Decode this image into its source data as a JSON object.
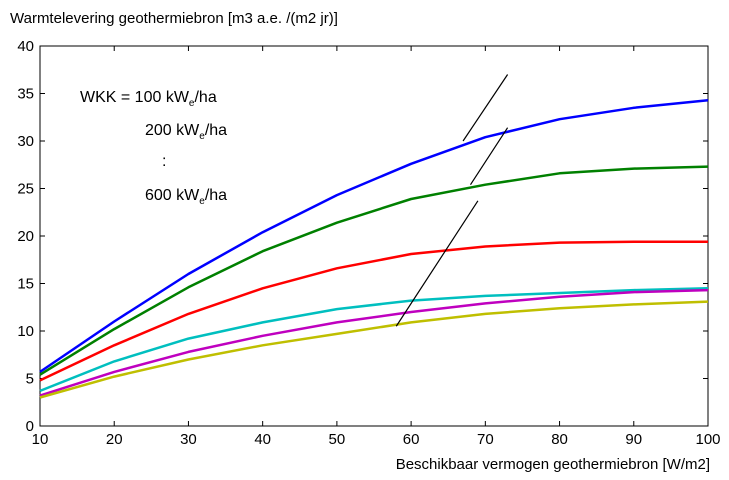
{
  "chart_data": {
    "type": "line",
    "title": "",
    "ylabel": "Warmtelevering geothermiebron [m3 a.e. /(m2 jr)]",
    "xlabel": "Beschikbaar vermogen geothermiebron [W/m2]",
    "xlim": [
      10,
      100
    ],
    "ylim": [
      0,
      40
    ],
    "x_ticks": [
      10,
      20,
      30,
      40,
      50,
      60,
      70,
      80,
      90,
      100
    ],
    "y_ticks": [
      0,
      5,
      10,
      15,
      20,
      25,
      30,
      35,
      40
    ],
    "grid": false,
    "x": [
      10,
      20,
      30,
      40,
      50,
      60,
      70,
      80,
      90,
      100
    ],
    "series": [
      {
        "color": "#0000ff",
        "values": [
          5.7,
          11.0,
          16.0,
          20.4,
          24.3,
          27.6,
          30.4,
          32.3,
          33.5,
          34.3
        ]
      },
      {
        "color": "#008000",
        "values": [
          5.4,
          10.2,
          14.6,
          18.4,
          21.4,
          23.9,
          25.4,
          26.6,
          27.1,
          27.3
        ]
      },
      {
        "color": "#ff0000",
        "values": [
          4.8,
          8.5,
          11.8,
          14.5,
          16.6,
          18.1,
          18.9,
          19.3,
          19.4,
          19.4
        ]
      },
      {
        "color": "#00bfbf",
        "values": [
          3.7,
          6.8,
          9.2,
          10.9,
          12.3,
          13.2,
          13.7,
          14.0,
          14.3,
          14.5
        ]
      },
      {
        "color": "#bf00bf",
        "values": [
          3.2,
          5.7,
          7.8,
          9.5,
          10.9,
          12.0,
          12.9,
          13.6,
          14.1,
          14.3
        ]
      },
      {
        "color": "#bfbf00",
        "values": [
          3.0,
          5.2,
          7.0,
          8.5,
          9.7,
          10.9,
          11.8,
          12.4,
          12.8,
          13.1
        ]
      }
    ],
    "annotations": {
      "line1_prefix": "WKK = 100 kW",
      "line2_prefix": "200 kW",
      "line3": ":",
      "line4_prefix": "600 kW",
      "subscript": "e",
      "suffix": "/ha"
    },
    "annotation_pointers": [
      {
        "from": [
          73,
          37.0
        ],
        "to": [
          67,
          30.0
        ]
      },
      {
        "from": [
          73,
          31.4
        ],
        "to": [
          68,
          25.4
        ]
      },
      {
        "from": [
          69,
          23.7
        ],
        "to": [
          58,
          10.5
        ]
      }
    ]
  }
}
